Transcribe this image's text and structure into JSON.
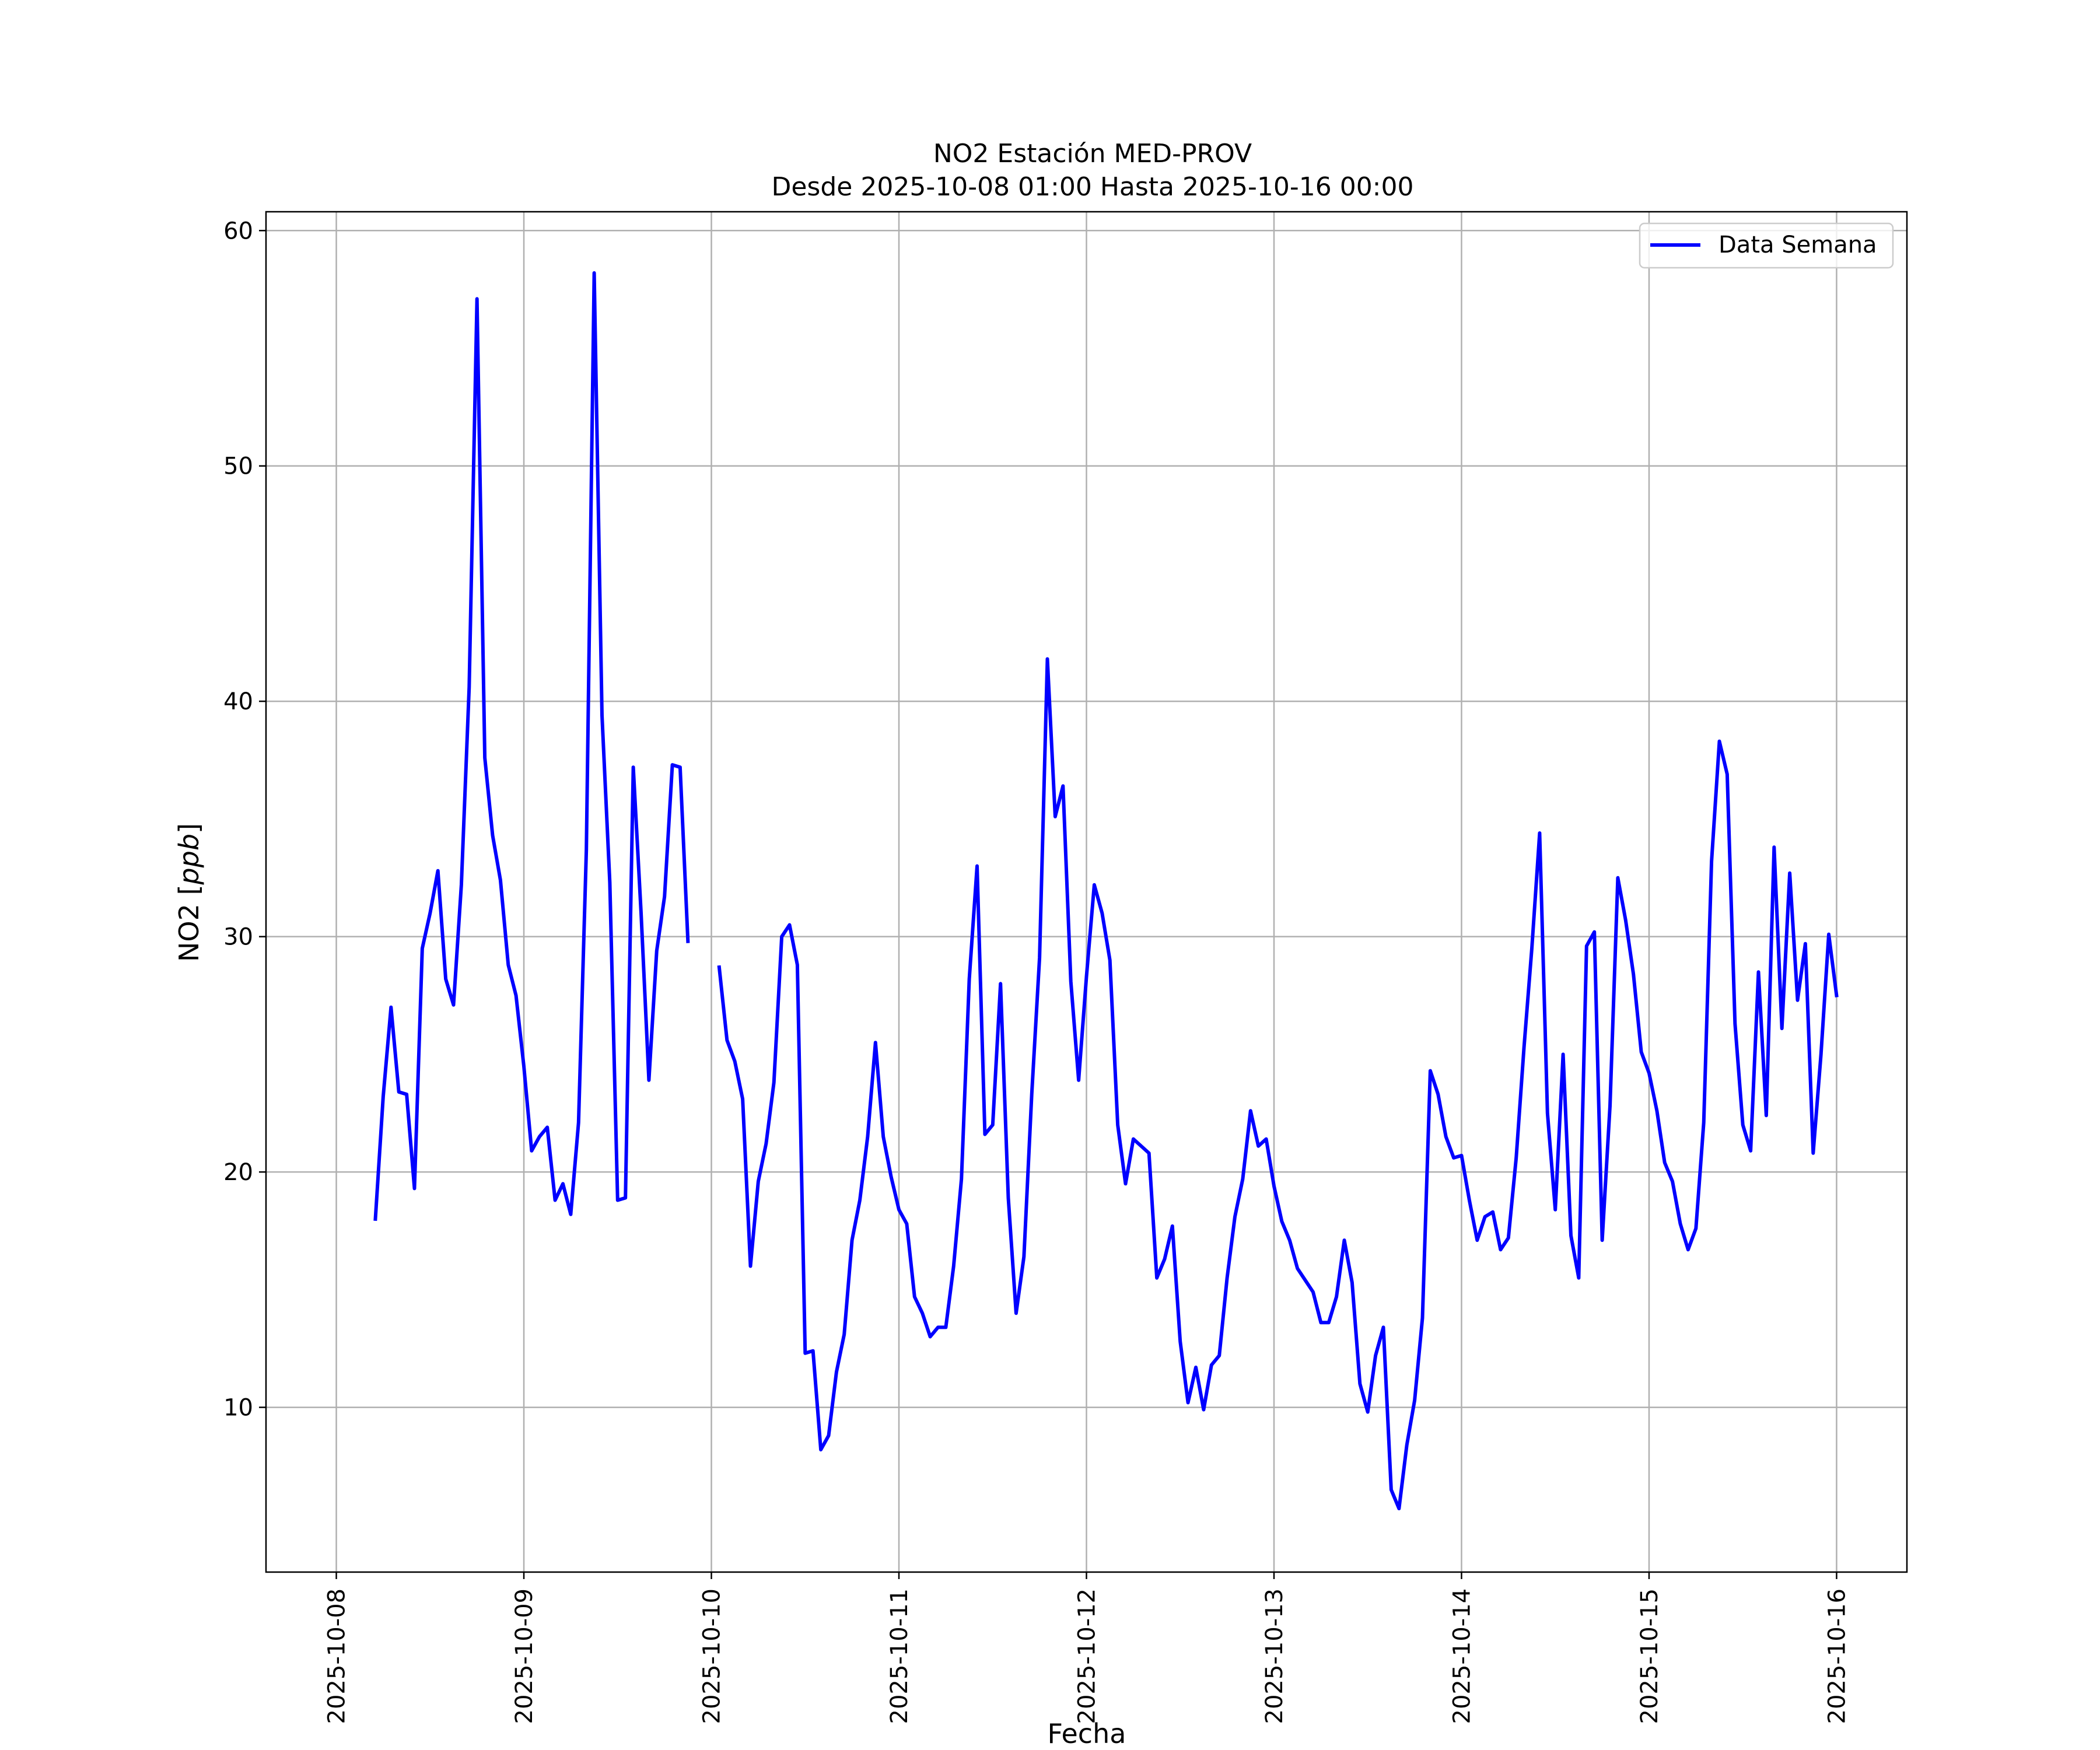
{
  "chart_data": {
    "type": "line",
    "title": "NO2 Estación MED-PROV",
    "subtitle": "Desde 2025-10-08 01:00 Hasta 2025-10-16 00:00",
    "xlabel": "Fecha",
    "ylabel_main": "NO2 [",
    "ylabel_unit": "ppb",
    "ylabel_close": "]",
    "grid": true,
    "legend_position": "top-right",
    "xlim": [
      "2025-10-07 15:00",
      "2025-10-16 09:00"
    ],
    "ylim": [
      3.0,
      60.8
    ],
    "x_ticks": [
      "2025-10-08",
      "2025-10-09",
      "2025-10-10",
      "2025-10-11",
      "2025-10-12",
      "2025-10-13",
      "2025-10-14",
      "2025-10-15",
      "2025-10-16"
    ],
    "y_ticks": [
      10,
      20,
      30,
      40,
      50,
      60
    ],
    "series": [
      {
        "name": "Data Semana",
        "color": "#0000ff",
        "x_start": "2025-10-08 05:00",
        "x_step_hours": 1,
        "values": [
          18.0,
          23.2,
          27.0,
          23.4,
          23.3,
          19.3,
          29.5,
          31.0,
          32.8,
          28.2,
          27.1,
          32.2,
          40.6,
          57.1,
          37.6,
          34.3,
          32.4,
          28.8,
          27.5,
          24.5,
          20.9,
          21.5,
          21.9,
          18.8,
          19.5,
          18.2,
          22.1,
          33.7,
          58.2,
          39.4,
          32.3,
          18.8,
          18.9,
          37.2,
          31.0,
          23.9,
          29.4,
          31.7,
          37.3,
          37.2,
          29.8,
          null,
          null,
          null,
          28.7,
          25.6,
          24.7,
          23.1,
          16.0,
          19.6,
          21.2,
          23.8,
          30.0,
          30.5,
          28.8,
          12.3,
          12.4,
          8.2,
          8.8,
          11.5,
          13.1,
          17.1,
          18.8,
          21.5,
          25.5,
          21.5,
          19.8,
          18.4,
          17.8,
          14.7,
          14.0,
          13.0,
          13.4,
          13.4,
          16.0,
          19.7,
          28.2,
          33.0,
          21.6,
          22.0,
          28.0,
          18.9,
          14.0,
          16.4,
          23.3,
          29.1,
          41.8,
          35.1,
          36.4,
          28.1,
          23.9,
          28.3,
          32.2,
          31.0,
          29.0,
          22.0,
          19.5,
          21.4,
          21.1,
          20.8,
          15.5,
          16.3,
          17.7,
          12.8,
          10.2,
          11.7,
          9.9,
          11.8,
          12.2,
          15.5,
          18.1,
          19.7,
          22.6,
          21.1,
          21.4,
          19.4,
          17.9,
          17.1,
          15.9,
          15.4,
          14.9,
          13.6,
          13.6,
          14.7,
          17.1,
          15.3,
          11.0,
          9.8,
          12.2,
          13.4,
          6.5,
          5.7,
          8.4,
          10.3,
          13.8,
          24.3,
          23.3,
          21.5,
          20.6,
          20.7,
          18.8,
          17.1,
          18.1,
          18.3,
          16.7,
          17.2,
          20.6,
          25.3,
          29.5,
          34.4,
          22.5,
          18.4,
          25.0,
          17.3,
          15.5,
          29.6,
          30.2,
          17.1,
          22.8,
          32.5,
          30.7,
          28.4,
          25.1,
          24.2,
          22.6,
          20.4,
          19.6,
          17.8,
          16.7,
          17.6,
          22.1,
          33.2,
          38.3,
          36.9,
          26.3,
          22.0,
          20.9,
          28.5,
          22.4,
          33.8,
          26.1,
          32.7,
          27.3,
          29.7,
          20.8,
          25.0,
          30.1,
          27.5
        ]
      }
    ]
  }
}
